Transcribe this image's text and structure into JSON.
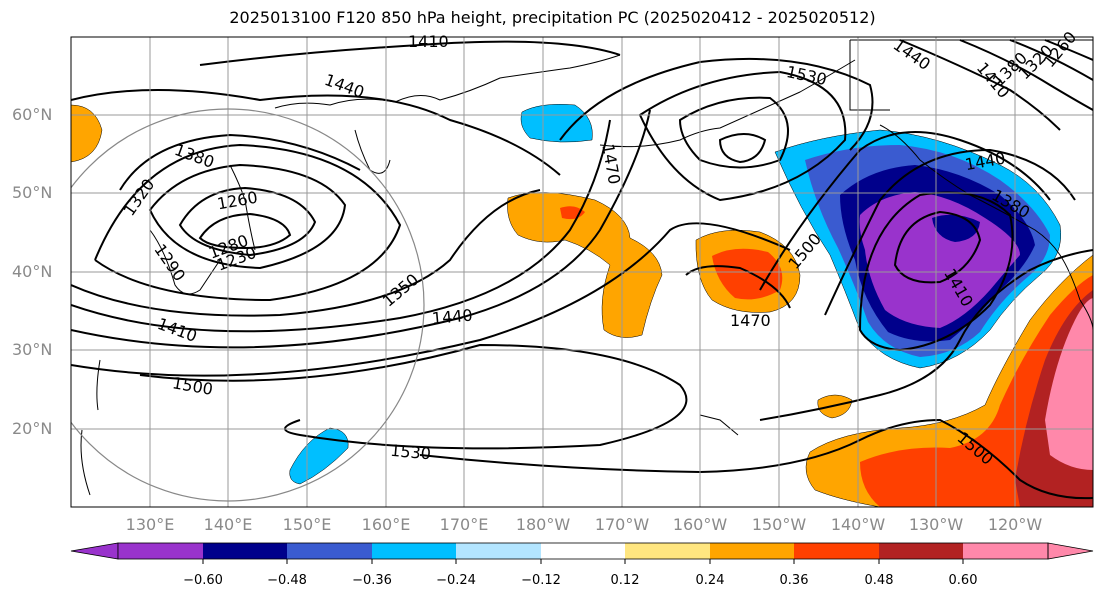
{
  "title": "2025013100 F120 850 hPa height, precipitation PC (2025020412 - 2025020512)",
  "lat_labels": [
    "60°N",
    "50°N",
    "40°N",
    "30°N",
    "20°N"
  ],
  "lon_labels": [
    "130°E",
    "140°E",
    "150°E",
    "160°E",
    "170°E",
    "180°W",
    "170°W",
    "160°W",
    "150°W",
    "140°W",
    "130°W",
    "120°W"
  ],
  "colorbar": {
    "colors": [
      "#9933cc",
      "#00008b",
      "#3a5bd0",
      "#00bfff",
      "#b3e5ff",
      "#ffffff",
      "#ffe680",
      "#ffa500",
      "#ff4000",
      "#b22222",
      "#ff88aa"
    ],
    "ticks": [
      "−0.60",
      "−0.48",
      "−0.36",
      "−0.24",
      "−0.12",
      "0.12",
      "0.24",
      "0.36",
      "0.48",
      "0.60"
    ]
  },
  "contour_labels": [
    "1410",
    "1440",
    "1530",
    "1380",
    "1320",
    "1260",
    "1280",
    "1230",
    "1290",
    "1350",
    "1410",
    "1440",
    "1500",
    "1470",
    "1500",
    "1470",
    "1530",
    "1440",
    "1410",
    "1380",
    "1500",
    "1440",
    "1410",
    "1380",
    "1320",
    "1260"
  ]
}
